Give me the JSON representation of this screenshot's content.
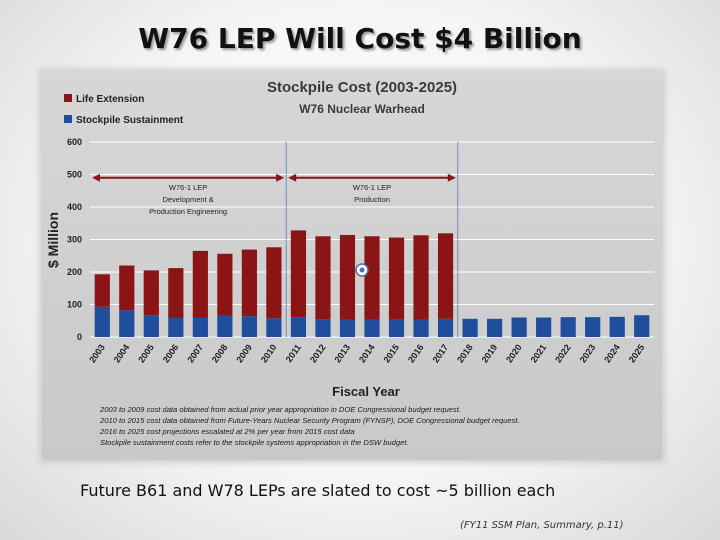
{
  "slide": {
    "title": "W76 LEP Will Cost $4 Billion",
    "caption": "Future B61 and W78 LEPs are slated to cost ~5 billion each",
    "source": "(FY11 SSM Plan, Summary, p.11)"
  },
  "chart_data": {
    "type": "bar",
    "stacked": true,
    "title": "Stockpile Cost (2003-2025)",
    "subtitle": "W76 Nuclear Warhead",
    "xlabel": "Fiscal Year",
    "ylabel": "$ Million",
    "ylim": [
      0,
      600
    ],
    "yticks": [
      0,
      100,
      200,
      300,
      400,
      500,
      600
    ],
    "grid": true,
    "categories": [
      "2003",
      "2004",
      "2005",
      "2006",
      "2007",
      "2008",
      "2009",
      "2010",
      "2011",
      "2012",
      "2013",
      "2014",
      "2015",
      "2016",
      "2017",
      "2018",
      "2019",
      "2020",
      "2021",
      "2022",
      "2023",
      "2024",
      "2025"
    ],
    "series": [
      {
        "name": "Stockpile Sustainment",
        "color": "#1f4e9c",
        "values": [
          93,
          82,
          67,
          60,
          60,
          66,
          64,
          58,
          61,
          55,
          54,
          54,
          53,
          54,
          56,
          56,
          56,
          60,
          60,
          61,
          61,
          62,
          67
        ]
      },
      {
        "name": "Life Extension",
        "color": "#8b1414",
        "values": [
          100,
          138,
          138,
          152,
          205,
          190,
          205,
          218,
          267,
          255,
          260,
          256,
          253,
          259,
          263,
          0,
          0,
          0,
          0,
          0,
          0,
          0,
          0
        ]
      }
    ],
    "legend_order": [
      "Life Extension",
      "Stockpile Sustainment"
    ],
    "legend_position": "top-left",
    "phases": [
      {
        "label_lines": [
          "W76-1 LEP",
          "Development &",
          "Production Engineering"
        ],
        "start_year": "2003",
        "end_year": "2010"
      },
      {
        "label_lines": [
          "W76-1 LEP",
          "Production"
        ],
        "start_year": "2011",
        "end_year": "2017"
      }
    ],
    "notes": [
      "2003 to 2009 cost data obtained from actual prior year appropriation in DOE Congressional budget request.",
      "2010 to 2015 cost data obtained from Future-Years Nuclear Security Program (FYNSP), DOE Congressional budget request.",
      "2016 to 2025 cost projections escalated at 2% per year from 2015 cost data",
      "Stockpile sustainment costs refer to the stockpile systems appropriation in the DSW budget."
    ]
  }
}
